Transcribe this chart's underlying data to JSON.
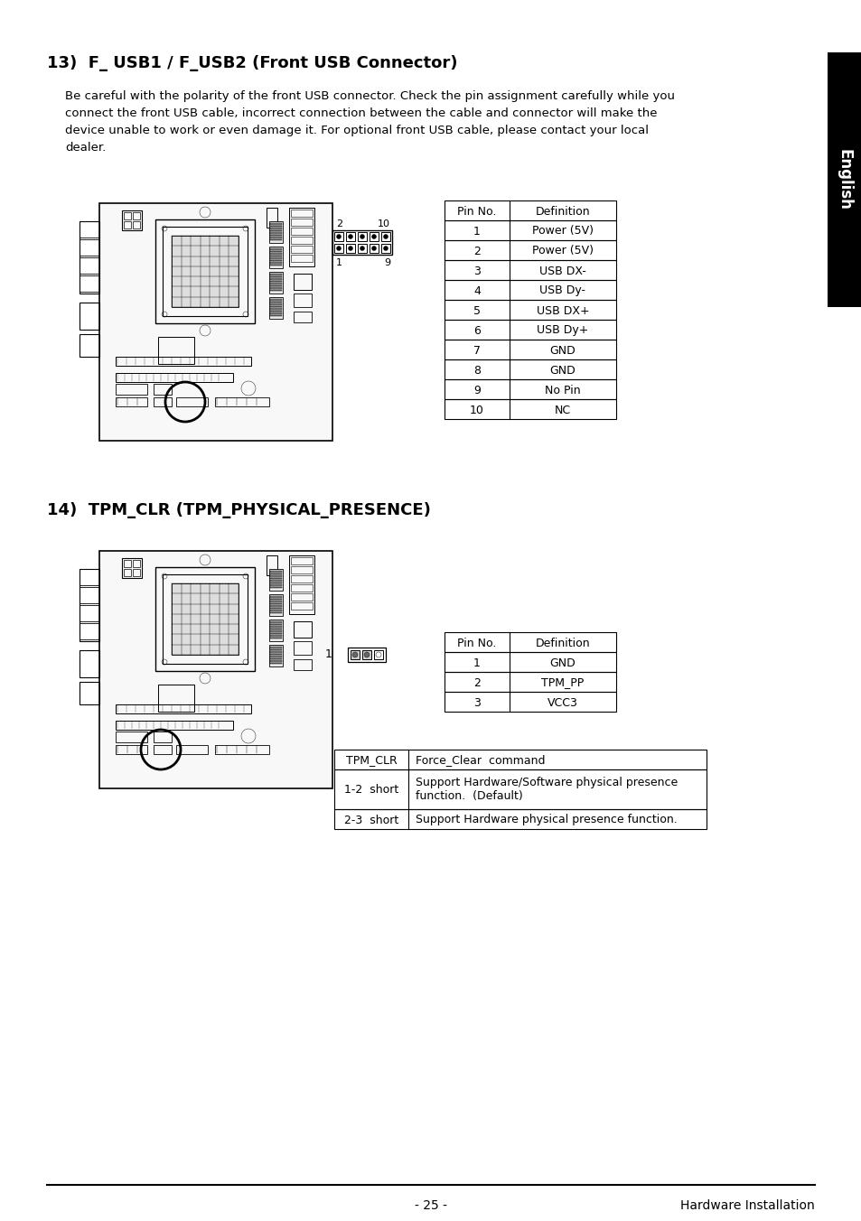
{
  "bg_color": "#ffffff",
  "section13_title_num": "13)  ",
  "section13_title_rest": "F_ USB1 / F_USB2 (Front USB Connector)",
  "section13_body_lines": [
    "Be careful with the polarity of the front USB connector. Check the pin assignment carefully while you",
    "connect the front USB cable, incorrect connection between the cable and connector will make the",
    "device unable to work or even damage it. For optional front USB cable, please contact your local",
    "dealer."
  ],
  "usb_table_headers": [
    "Pin No.",
    "Definition"
  ],
  "usb_table_rows": [
    [
      "1",
      "Power (5V)"
    ],
    [
      "2",
      "Power (5V)"
    ],
    [
      "3",
      "USB DX-"
    ],
    [
      "4",
      "USB Dy-"
    ],
    [
      "5",
      "USB DX+"
    ],
    [
      "6",
      "USB Dy+"
    ],
    [
      "7",
      "GND"
    ],
    [
      "8",
      "GND"
    ],
    [
      "9",
      "No Pin"
    ],
    [
      "10",
      "NC"
    ]
  ],
  "section14_title_num": "14)  ",
  "section14_title_rest": "TPM_CLR (TPM_PHYSICAL_PRESENCE)",
  "tpm_pin_headers": [
    "Pin No.",
    "Definition"
  ],
  "tpm_pin_rows": [
    [
      "1",
      "GND"
    ],
    [
      "2",
      "TPM_PP"
    ],
    [
      "3",
      "VCC3"
    ]
  ],
  "tpm_cmd_header_col1": "TPM_CLR",
  "tpm_cmd_header_col2": "Force_Clear  command",
  "tpm_cmd_rows": [
    [
      "1-2  short",
      "Support Hardware/Software physical presence",
      "function.  (Default)"
    ],
    [
      "2-3  short",
      "Support Hardware physical presence function.",
      ""
    ]
  ],
  "footer_page": "- 25 -",
  "footer_right": "Hardware Installation",
  "sidebar_text": "English"
}
